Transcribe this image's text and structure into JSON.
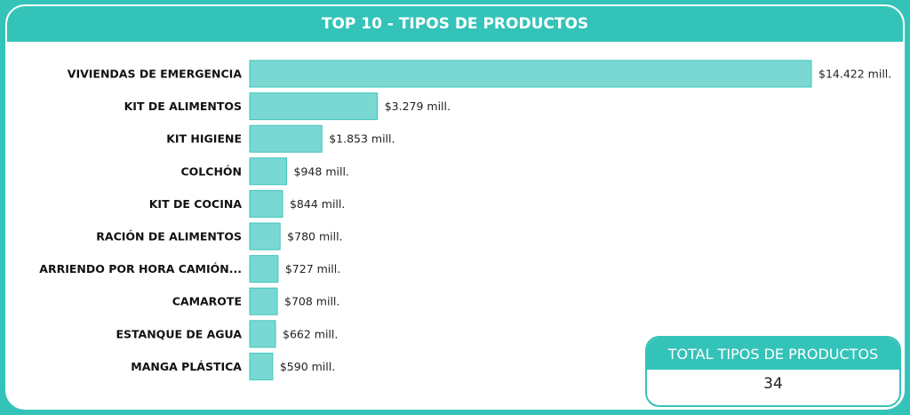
{
  "header": {
    "title": "TOP 10 - TIPOS DE PRODUCTOS"
  },
  "kpi": {
    "title": "TOTAL TIPOS DE PRODUCTOS",
    "value": "34"
  },
  "colors": {
    "accent": "#34c3b9",
    "bar_fill": "#7ad8d2",
    "bar_stroke": "#3cc4bb"
  },
  "chart_data": {
    "type": "bar",
    "orientation": "horizontal",
    "title": "TOP 10 - TIPOS DE PRODUCTOS",
    "categories": [
      "VIVIENDAS DE EMERGENCIA",
      "KIT DE ALIMENTOS",
      "KIT HIGIENE",
      "COLCHÓN",
      "KIT DE COCINA",
      "RACIÓN DE ALIMENTOS",
      "ARRIENDO POR HORA CAMIÓN...",
      "CAMAROTE",
      "ESTANQUE DE AGUA",
      "MANGA PLÁSTICA"
    ],
    "values": [
      14422,
      3279,
      1853,
      948,
      844,
      780,
      727,
      708,
      662,
      590
    ],
    "value_labels": [
      "$14.422 mill.",
      "$3.279 mill.",
      "$1.853 mill.",
      "$948 mill.",
      "$844 mill.",
      "$780 mill.",
      "$727 mill.",
      "$708 mill.",
      "$662 mill.",
      "$590 mill."
    ],
    "unit": "mill.",
    "xlim": [
      0,
      14422
    ],
    "grid": false,
    "legend": "none"
  }
}
